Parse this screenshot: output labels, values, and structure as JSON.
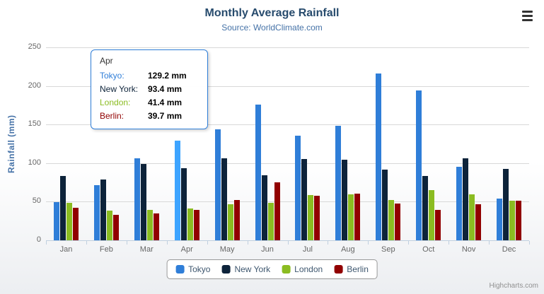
{
  "title": "Monthly Average Rainfall",
  "subtitle": "Source: WorldClimate.com",
  "credits": "Highcharts.com",
  "export_menu": {
    "icon": "hamburger-icon"
  },
  "tooltip": {
    "title": "Apr",
    "border_color": "#2f7ed8",
    "rows": [
      {
        "name": "Tokyo:",
        "value": "129.2 mm",
        "color": "#2f7ed8"
      },
      {
        "name": "New York:",
        "value": "93.4 mm",
        "color": "#0d233a"
      },
      {
        "name": "London:",
        "value": "41.4 mm",
        "color": "#8bbc21"
      },
      {
        "name": "Berlin:",
        "value": "39.7 mm",
        "color": "#910000"
      }
    ]
  },
  "chart_data": {
    "type": "bar",
    "title": "Monthly Average Rainfall",
    "subtitle": "Source: WorldClimate.com",
    "xlabel": "",
    "ylabel": "Rainfall (mm)",
    "ylim": [
      0,
      250
    ],
    "tick_interval": 50,
    "grid": true,
    "legend_position": "bottom",
    "categories": [
      "Jan",
      "Feb",
      "Mar",
      "Apr",
      "May",
      "Jun",
      "Jul",
      "Aug",
      "Sep",
      "Oct",
      "Nov",
      "Dec"
    ],
    "series": [
      {
        "name": "Tokyo",
        "color": "#2f7ed8",
        "values": [
          49.9,
          71.5,
          106.4,
          129.2,
          144.0,
          176.0,
          135.6,
          148.5,
          216.4,
          194.1,
          95.6,
          54.4
        ]
      },
      {
        "name": "New York",
        "color": "#0d233a",
        "values": [
          83.6,
          78.8,
          98.5,
          93.4,
          106.0,
          84.5,
          105.0,
          104.3,
          91.2,
          83.5,
          106.6,
          92.3
        ]
      },
      {
        "name": "London",
        "color": "#8bbc21",
        "values": [
          48.9,
          38.8,
          39.3,
          41.4,
          47.0,
          48.3,
          59.0,
          59.6,
          52.4,
          65.2,
          59.3,
          51.2
        ]
      },
      {
        "name": "Berlin",
        "color": "#910000",
        "values": [
          42.4,
          33.2,
          34.5,
          39.7,
          52.6,
          75.5,
          57.4,
          60.4,
          47.6,
          39.1,
          46.8,
          51.1
        ]
      }
    ],
    "highlight": {
      "series": "Tokyo",
      "category": "Apr"
    }
  }
}
